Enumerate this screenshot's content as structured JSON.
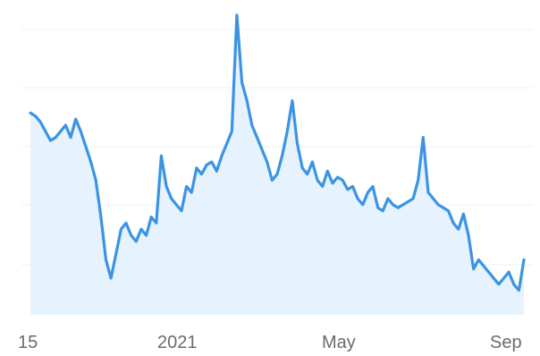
{
  "chart_data": {
    "type": "area",
    "title": "",
    "xlabel": "",
    "ylabel": "",
    "x_tick_labels": [
      "15",
      "2021",
      "May",
      "Sep"
    ],
    "grid": true,
    "colors": {
      "line": "#3b94e3",
      "fill": "#e6f2fd",
      "grid": "#eef2f6",
      "tick": "#6b6b6b"
    },
    "series": [
      {
        "values": [
          0.66,
          0.65,
          0.63,
          0.6,
          0.57,
          0.58,
          0.6,
          0.62,
          0.58,
          0.64,
          0.6,
          0.55,
          0.5,
          0.44,
          0.32,
          0.18,
          0.12,
          0.2,
          0.28,
          0.3,
          0.26,
          0.24,
          0.28,
          0.26,
          0.32,
          0.3,
          0.52,
          0.42,
          0.38,
          0.36,
          0.34,
          0.42,
          0.4,
          0.48,
          0.46,
          0.49,
          0.5,
          0.47,
          0.52,
          0.56,
          0.6,
          0.98,
          0.76,
          0.7,
          0.62,
          0.58,
          0.54,
          0.5,
          0.44,
          0.46,
          0.52,
          0.6,
          0.7,
          0.56,
          0.48,
          0.46,
          0.5,
          0.44,
          0.42,
          0.47,
          0.43,
          0.45,
          0.44,
          0.41,
          0.42,
          0.38,
          0.36,
          0.4,
          0.42,
          0.35,
          0.34,
          0.38,
          0.36,
          0.35,
          0.36,
          0.37,
          0.38,
          0.44,
          0.58,
          0.4,
          0.38,
          0.36,
          0.35,
          0.34,
          0.3,
          0.28,
          0.33,
          0.26,
          0.15,
          0.18,
          0.16,
          0.14,
          0.12,
          0.1,
          0.12,
          0.14,
          0.1,
          0.08,
          0.18
        ]
      }
    ]
  }
}
